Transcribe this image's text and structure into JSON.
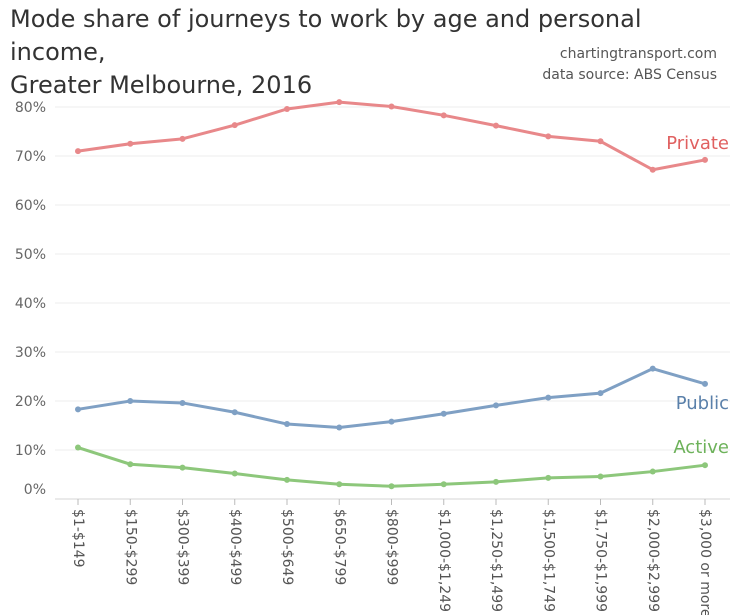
{
  "chart_data": {
    "type": "line",
    "title": [
      "Mode share of journeys to work by age and personal income,",
      "Greater Melbourne, 2016"
    ],
    "credits": [
      "chartingtransport.com",
      "data source: ABS Census"
    ],
    "categories": [
      "$1-$149",
      "$150-$299",
      "$300-$399",
      "$400-$499",
      "$500-$649",
      "$650-$799",
      "$800-$999",
      "$1,000-$1,249",
      "$1,250-$1,499",
      "$1,500-$1,749",
      "$1,750-$1,999",
      "$2,000-$2,999",
      "$3,000 or more"
    ],
    "y_ticks": [
      "0%",
      "10%",
      "20%",
      "30%",
      "40%",
      "50%",
      "60%",
      "70%",
      "80%"
    ],
    "ylim": [
      0,
      85
    ],
    "grid": true,
    "series": [
      {
        "name": "Private",
        "color": "#e8888a",
        "label_color": "#e06060",
        "values": [
          71.0,
          72.5,
          73.5,
          76.3,
          79.6,
          81.0,
          80.1,
          78.3,
          76.2,
          74.0,
          73.0,
          67.2,
          69.2
        ]
      },
      {
        "name": "Public",
        "color": "#7fa0c4",
        "label_color": "#5a80aa",
        "values": [
          18.3,
          20.0,
          19.6,
          17.7,
          15.3,
          14.6,
          15.8,
          17.4,
          19.1,
          20.7,
          21.6,
          26.6,
          23.5
        ]
      },
      {
        "name": "Active",
        "color": "#8dc77b",
        "label_color": "#6db25a",
        "values": [
          10.5,
          7.1,
          6.4,
          5.2,
          3.9,
          3.0,
          2.6,
          3.0,
          3.5,
          4.3,
          4.6,
          5.6,
          6.9
        ]
      }
    ]
  }
}
